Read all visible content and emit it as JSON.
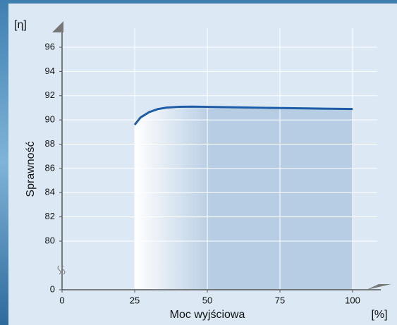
{
  "chart_data": {
    "type": "area-line",
    "y_label_top": "[η]",
    "ylabel": "Sprawność",
    "xlabel": "Moc wyjściowa",
    "x_unit": "[%]",
    "x": [
      25,
      27,
      30,
      33,
      36,
      40,
      45,
      50,
      60,
      70,
      80,
      90,
      100
    ],
    "series": [
      {
        "color": "#1d5ca6",
        "values": [
          89.6,
          90.2,
          90.65,
          90.9,
          91.02,
          91.08,
          91.1,
          91.08,
          91.04,
          91.0,
          90.97,
          90.93,
          90.9
        ]
      }
    ],
    "xlim": [
      0,
      100
    ],
    "xticks": [
      0,
      25,
      50,
      75,
      100
    ],
    "ylim": [
      0,
      96
    ],
    "yticks": [
      0,
      80,
      82,
      84,
      86,
      88,
      90,
      92,
      94,
      96
    ],
    "y_axis_break": true,
    "grid": true
  }
}
